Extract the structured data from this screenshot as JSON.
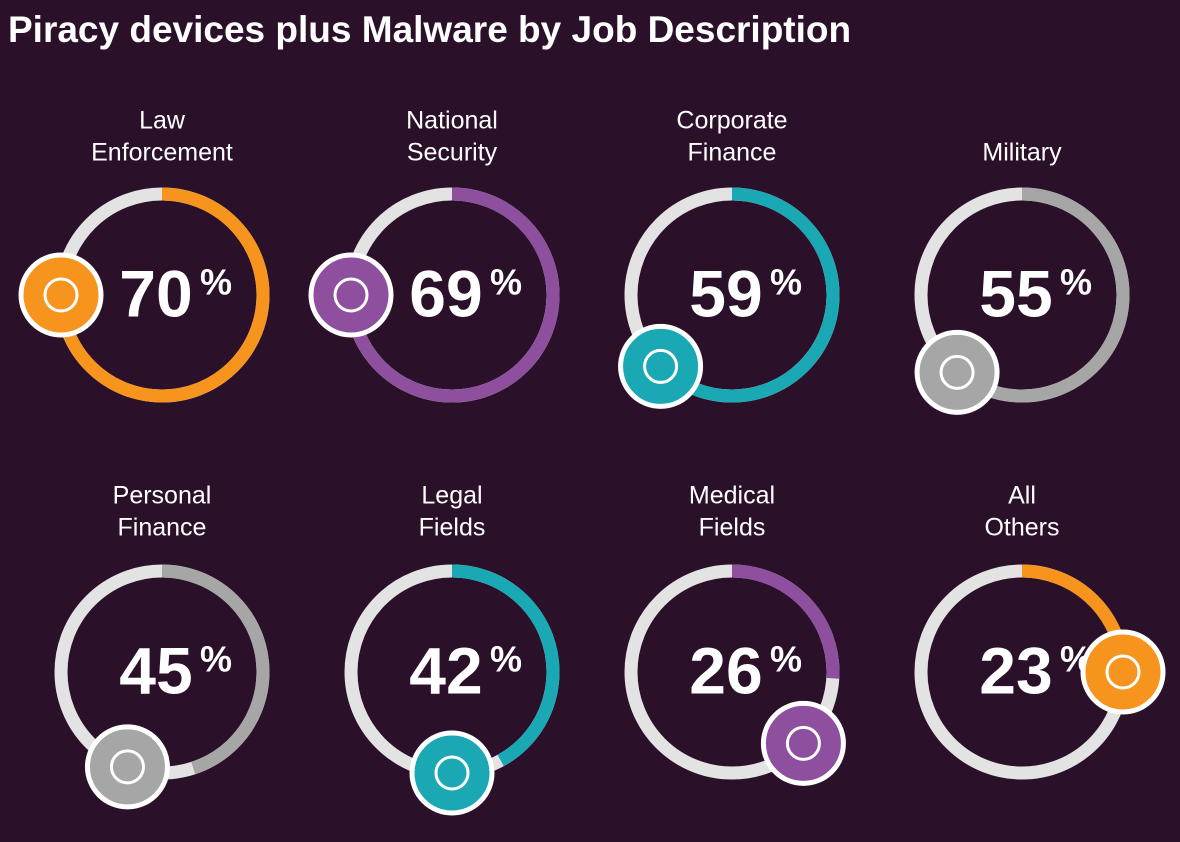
{
  "title": "Piracy devices plus Malware by Job Description",
  "unit": "%",
  "items": [
    {
      "label": [
        "Law",
        "Enforcement"
      ],
      "value": 70,
      "color": "#f7941d"
    },
    {
      "label": [
        "National",
        "Security"
      ],
      "value": 69,
      "color": "#8e4f9f"
    },
    {
      "label": [
        "Corporate",
        "Finance"
      ],
      "value": 59,
      "color": "#1aa9b4"
    },
    {
      "label": [
        "Military"
      ],
      "value": 55,
      "color": "#a6a6a6"
    },
    {
      "label": [
        "Personal",
        "Finance"
      ],
      "value": 45,
      "color": "#a6a6a6"
    },
    {
      "label": [
        "Legal",
        "Fields"
      ],
      "value": 42,
      "color": "#1aa9b4"
    },
    {
      "label": [
        "Medical",
        "Fields"
      ],
      "value": 26,
      "color": "#8e4f9f"
    },
    {
      "label": [
        "All",
        "Others"
      ],
      "value": 23,
      "color": "#f7941d"
    }
  ]
}
